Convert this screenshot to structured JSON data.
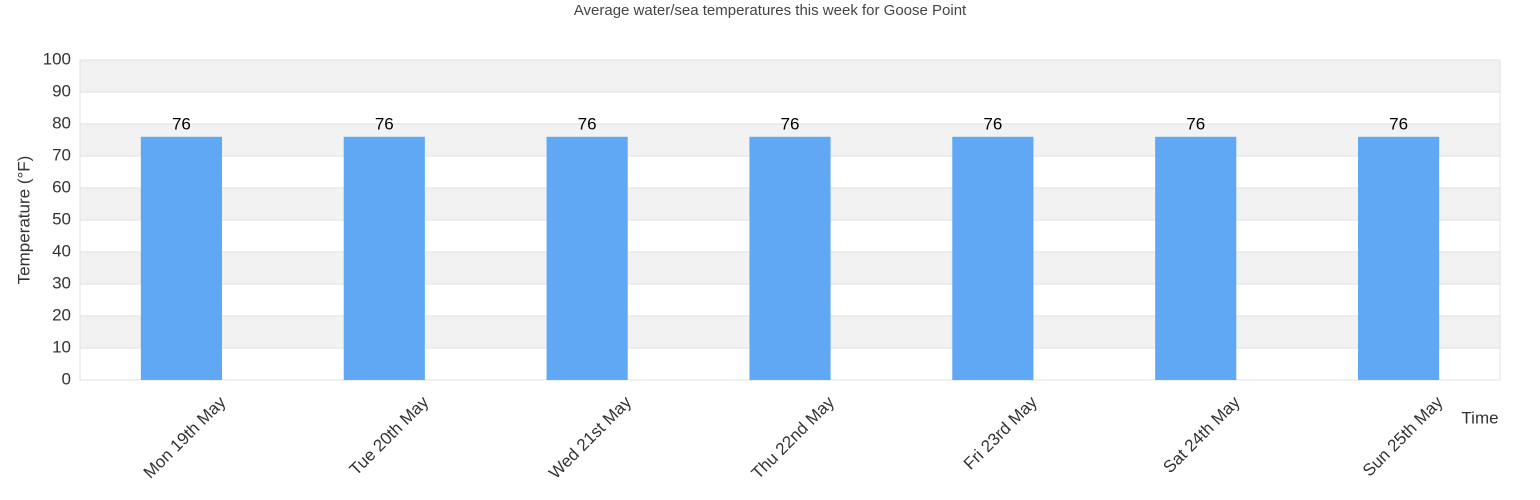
{
  "chart_data": {
    "type": "bar",
    "title": "Average water/sea temperatures this week for Goose Point",
    "x_label": "Time",
    "y_label": "Temperature (°F)",
    "categories": [
      "Mon 19th May",
      "Tue 20th May",
      "Wed 21st May",
      "Thu 22nd May",
      "Fri 23rd May",
      "Sat 24th May",
      "Sun 25th May"
    ],
    "values": [
      76,
      76,
      76,
      76,
      76,
      76,
      76
    ],
    "color": "#60a8f4",
    "ylim": [
      0,
      100
    ],
    "yticks": [
      0,
      10,
      20,
      30,
      40,
      50,
      60,
      70,
      80,
      90,
      100
    ],
    "grid": true
  }
}
